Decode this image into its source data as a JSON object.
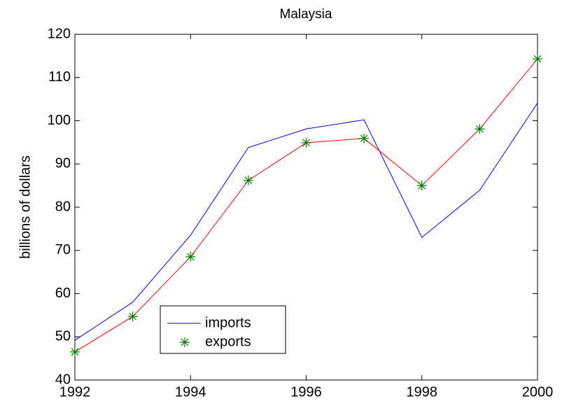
{
  "chart_data": {
    "type": "line",
    "title": "Malaysia",
    "ylabel": "billions of dollars",
    "x": [
      1992,
      1993,
      1994,
      1995,
      1996,
      1997,
      1998,
      1999,
      2000
    ],
    "series": [
      {
        "name": "imports",
        "color": "#0000ff",
        "values": [
          49.2,
          58,
          73.5,
          93.8,
          98.1,
          100.2,
          73,
          83.9,
          104.1
        ]
      },
      {
        "name": "exports",
        "color": "#ff0000",
        "marker": "*",
        "marker_color": "#008000",
        "values": [
          46.5,
          54.7,
          68.5,
          86.2,
          94.9,
          95.9,
          85,
          98.1,
          114.3
        ]
      }
    ],
    "xlim": [
      1992,
      2000
    ],
    "xticks": [
      1992,
      1994,
      1996,
      1998,
      2000
    ],
    "ylim": [
      40,
      120
    ],
    "yticks": [
      40,
      50,
      60,
      70,
      80,
      90,
      100,
      110,
      120
    ],
    "legend": "lower left",
    "grid": false
  }
}
